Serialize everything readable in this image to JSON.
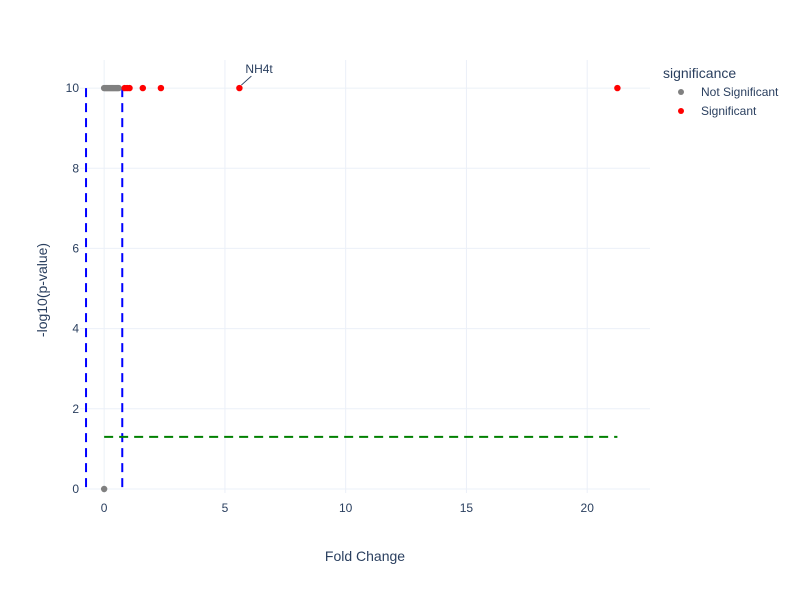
{
  "chart_data": {
    "type": "scatter",
    "xlabel": "Fold Change",
    "ylabel": "-log10(p-value)",
    "xlim": [
      -1.0,
      22.6
    ],
    "ylim": [
      -0.1,
      10.7
    ],
    "xticks": [
      0,
      5,
      10,
      15,
      20
    ],
    "yticks": [
      0,
      2,
      4,
      6,
      8,
      10
    ],
    "grid": true,
    "legend": {
      "title": "significance",
      "placement": "top-right",
      "entries": [
        {
          "name": "Not Significant",
          "color": "#808080"
        },
        {
          "name": "Significant",
          "color": "#ff0000"
        }
      ]
    },
    "series": [
      {
        "name": "Not Significant",
        "color": "#808080",
        "points": [
          {
            "x": 0.0,
            "y": 10
          },
          {
            "x": 0.05,
            "y": 10
          },
          {
            "x": 0.1,
            "y": 10
          },
          {
            "x": 0.15,
            "y": 10
          },
          {
            "x": 0.2,
            "y": 10
          },
          {
            "x": 0.25,
            "y": 10
          },
          {
            "x": 0.3,
            "y": 10
          },
          {
            "x": 0.35,
            "y": 10
          },
          {
            "x": 0.4,
            "y": 10
          },
          {
            "x": 0.45,
            "y": 10
          },
          {
            "x": 0.5,
            "y": 10
          },
          {
            "x": 0.55,
            "y": 10
          },
          {
            "x": 0.6,
            "y": 10
          },
          {
            "x": 0.0,
            "y": 0
          }
        ]
      },
      {
        "name": "Significant",
        "color": "#ff0000",
        "points": [
          {
            "x": 0.85,
            "y": 10
          },
          {
            "x": 0.95,
            "y": 10
          },
          {
            "x": 1.05,
            "y": 10
          },
          {
            "x": 1.6,
            "y": 10
          },
          {
            "x": 2.35,
            "y": 10
          },
          {
            "x": 5.6,
            "y": 10
          },
          {
            "x": 21.25,
            "y": 10
          }
        ]
      }
    ],
    "reference_lines": [
      {
        "orientation": "vertical",
        "x": -0.75,
        "y_range": [
          0,
          10
        ],
        "color": "#0000ff",
        "style": "dashed"
      },
      {
        "orientation": "vertical",
        "x": 0.75,
        "y_range": [
          0,
          10
        ],
        "color": "#0000ff",
        "style": "dashed"
      },
      {
        "orientation": "horizontal",
        "y": 1.3,
        "x_range": [
          0,
          21.25
        ],
        "color": "#008000",
        "style": "dashed"
      }
    ],
    "annotations": [
      {
        "text": "NH4t",
        "x": 5.6,
        "y": 10
      }
    ]
  }
}
